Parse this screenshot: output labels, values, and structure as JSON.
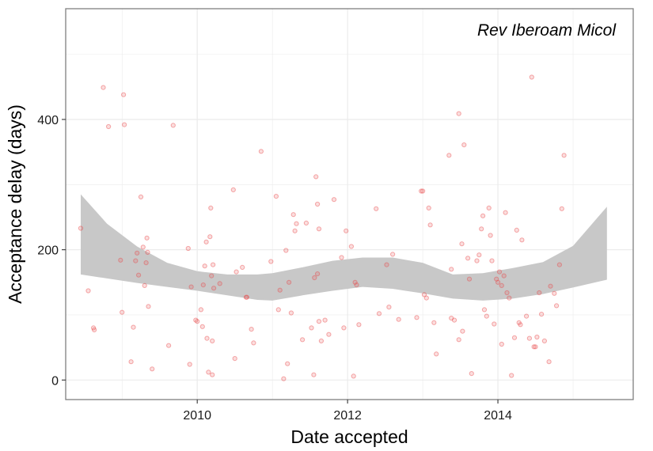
{
  "chart_data": {
    "type": "scatter",
    "annotation": "Rev Iberoam Micol",
    "xlabel": "Date accepted",
    "ylabel": "Acceptance delay (days)",
    "xlim": [
      2008.25,
      2015.8
    ],
    "ylim": [
      -30,
      570
    ],
    "x_ticks": [
      2010,
      2012,
      2014
    ],
    "x_tick_labels": [
      "2010",
      "2012",
      "2014"
    ],
    "y_ticks": [
      0,
      200,
      400
    ],
    "y_tick_labels": [
      "0",
      "200",
      "400"
    ],
    "grid": true,
    "colors": {
      "points": "#e8474a",
      "band": "#c8c8c8",
      "grid": "#ebebeb",
      "border": "#7f7f7f"
    },
    "smooth_band": [
      {
        "x": 2008.45,
        "lo": 162,
        "hi": 285
      },
      {
        "x": 2008.8,
        "lo": 156,
        "hi": 240
      },
      {
        "x": 2009.2,
        "lo": 149,
        "hi": 205
      },
      {
        "x": 2009.6,
        "lo": 143,
        "hi": 180
      },
      {
        "x": 2010.0,
        "lo": 137,
        "hi": 167
      },
      {
        "x": 2010.4,
        "lo": 130,
        "hi": 162
      },
      {
        "x": 2010.8,
        "lo": 123,
        "hi": 162
      },
      {
        "x": 2011.0,
        "lo": 122,
        "hi": 164
      },
      {
        "x": 2011.4,
        "lo": 130,
        "hi": 173
      },
      {
        "x": 2011.8,
        "lo": 137,
        "hi": 183
      },
      {
        "x": 2012.2,
        "lo": 143,
        "hi": 188
      },
      {
        "x": 2012.6,
        "lo": 140,
        "hi": 188
      },
      {
        "x": 2013.0,
        "lo": 133,
        "hi": 180
      },
      {
        "x": 2013.4,
        "lo": 125,
        "hi": 162
      },
      {
        "x": 2013.8,
        "lo": 122,
        "hi": 164
      },
      {
        "x": 2014.2,
        "lo": 125,
        "hi": 172
      },
      {
        "x": 2014.6,
        "lo": 132,
        "hi": 181
      },
      {
        "x": 2015.0,
        "lo": 142,
        "hi": 206
      },
      {
        "x": 2015.45,
        "lo": 154,
        "hi": 266
      }
    ],
    "points": [
      {
        "x": 2008.45,
        "y": 233
      },
      {
        "x": 2008.55,
        "y": 137
      },
      {
        "x": 2008.62,
        "y": 80
      },
      {
        "x": 2008.63,
        "y": 77
      },
      {
        "x": 2008.75,
        "y": 449
      },
      {
        "x": 2008.82,
        "y": 389
      },
      {
        "x": 2008.98,
        "y": 184
      },
      {
        "x": 2009.0,
        "y": 104
      },
      {
        "x": 2009.02,
        "y": 438
      },
      {
        "x": 2009.03,
        "y": 392
      },
      {
        "x": 2009.12,
        "y": 28
      },
      {
        "x": 2009.15,
        "y": 81
      },
      {
        "x": 2009.18,
        "y": 183
      },
      {
        "x": 2009.2,
        "y": 195
      },
      {
        "x": 2009.22,
        "y": 161
      },
      {
        "x": 2009.25,
        "y": 281
      },
      {
        "x": 2009.28,
        "y": 204
      },
      {
        "x": 2009.3,
        "y": 145
      },
      {
        "x": 2009.32,
        "y": 180
      },
      {
        "x": 2009.33,
        "y": 218
      },
      {
        "x": 2009.34,
        "y": 196
      },
      {
        "x": 2009.35,
        "y": 113
      },
      {
        "x": 2009.4,
        "y": 17
      },
      {
        "x": 2009.62,
        "y": 53
      },
      {
        "x": 2009.68,
        "y": 391
      },
      {
        "x": 2009.88,
        "y": 202
      },
      {
        "x": 2009.9,
        "y": 24
      },
      {
        "x": 2009.92,
        "y": 143
      },
      {
        "x": 2009.98,
        "y": 92
      },
      {
        "x": 2010.0,
        "y": 90
      },
      {
        "x": 2010.05,
        "y": 108
      },
      {
        "x": 2010.07,
        "y": 82
      },
      {
        "x": 2010.08,
        "y": 146
      },
      {
        "x": 2010.1,
        "y": 175
      },
      {
        "x": 2010.12,
        "y": 212
      },
      {
        "x": 2010.13,
        "y": 64
      },
      {
        "x": 2010.15,
        "y": 12
      },
      {
        "x": 2010.17,
        "y": 220
      },
      {
        "x": 2010.18,
        "y": 264
      },
      {
        "x": 2010.19,
        "y": 160
      },
      {
        "x": 2010.2,
        "y": 60
      },
      {
        "x": 2010.21,
        "y": 177
      },
      {
        "x": 2010.22,
        "y": 141
      },
      {
        "x": 2010.2,
        "y": 8
      },
      {
        "x": 2010.3,
        "y": 148
      },
      {
        "x": 2010.48,
        "y": 292
      },
      {
        "x": 2010.5,
        "y": 33
      },
      {
        "x": 2010.52,
        "y": 166
      },
      {
        "x": 2010.6,
        "y": 173
      },
      {
        "x": 2010.65,
        "y": 127
      },
      {
        "x": 2010.66,
        "y": 127
      },
      {
        "x": 2010.72,
        "y": 78
      },
      {
        "x": 2010.75,
        "y": 57
      },
      {
        "x": 2010.85,
        "y": 351
      },
      {
        "x": 2010.98,
        "y": 182
      },
      {
        "x": 2011.05,
        "y": 282
      },
      {
        "x": 2011.08,
        "y": 108
      },
      {
        "x": 2011.1,
        "y": 138
      },
      {
        "x": 2011.15,
        "y": 2
      },
      {
        "x": 2011.18,
        "y": 199
      },
      {
        "x": 2011.2,
        "y": 25
      },
      {
        "x": 2011.22,
        "y": 150
      },
      {
        "x": 2011.25,
        "y": 103
      },
      {
        "x": 2011.28,
        "y": 254
      },
      {
        "x": 2011.3,
        "y": 229
      },
      {
        "x": 2011.32,
        "y": 240
      },
      {
        "x": 2011.4,
        "y": 62
      },
      {
        "x": 2011.45,
        "y": 241
      },
      {
        "x": 2011.52,
        "y": 80
      },
      {
        "x": 2011.55,
        "y": 8
      },
      {
        "x": 2011.56,
        "y": 157
      },
      {
        "x": 2011.58,
        "y": 312
      },
      {
        "x": 2011.6,
        "y": 163
      },
      {
        "x": 2011.6,
        "y": 270
      },
      {
        "x": 2011.62,
        "y": 90
      },
      {
        "x": 2011.62,
        "y": 232
      },
      {
        "x": 2011.65,
        "y": 60
      },
      {
        "x": 2011.7,
        "y": 92
      },
      {
        "x": 2011.75,
        "y": 70
      },
      {
        "x": 2011.82,
        "y": 277
      },
      {
        "x": 2011.92,
        "y": 188
      },
      {
        "x": 2011.95,
        "y": 80
      },
      {
        "x": 2011.98,
        "y": 229
      },
      {
        "x": 2012.05,
        "y": 205
      },
      {
        "x": 2012.08,
        "y": 6
      },
      {
        "x": 2012.1,
        "y": 150
      },
      {
        "x": 2012.12,
        "y": 146
      },
      {
        "x": 2012.15,
        "y": 85
      },
      {
        "x": 2012.38,
        "y": 263
      },
      {
        "x": 2012.42,
        "y": 102
      },
      {
        "x": 2012.52,
        "y": 177
      },
      {
        "x": 2012.55,
        "y": 112
      },
      {
        "x": 2012.6,
        "y": 193
      },
      {
        "x": 2012.68,
        "y": 93
      },
      {
        "x": 2012.92,
        "y": 96
      },
      {
        "x": 2012.98,
        "y": 290
      },
      {
        "x": 2013.0,
        "y": 290
      },
      {
        "x": 2013.02,
        "y": 131
      },
      {
        "x": 2013.05,
        "y": 126
      },
      {
        "x": 2013.08,
        "y": 264
      },
      {
        "x": 2013.1,
        "y": 238
      },
      {
        "x": 2013.15,
        "y": 88
      },
      {
        "x": 2013.18,
        "y": 40
      },
      {
        "x": 2013.35,
        "y": 345
      },
      {
        "x": 2013.38,
        "y": 95
      },
      {
        "x": 2013.38,
        "y": 170
      },
      {
        "x": 2013.42,
        "y": 92
      },
      {
        "x": 2013.48,
        "y": 409
      },
      {
        "x": 2013.48,
        "y": 62
      },
      {
        "x": 2013.52,
        "y": 209
      },
      {
        "x": 2013.53,
        "y": 75
      },
      {
        "x": 2013.55,
        "y": 361
      },
      {
        "x": 2013.6,
        "y": 187
      },
      {
        "x": 2013.62,
        "y": 155
      },
      {
        "x": 2013.65,
        "y": 10
      },
      {
        "x": 2013.72,
        "y": 183
      },
      {
        "x": 2013.75,
        "y": 192
      },
      {
        "x": 2013.78,
        "y": 232
      },
      {
        "x": 2013.8,
        "y": 252
      },
      {
        "x": 2013.82,
        "y": 108
      },
      {
        "x": 2013.85,
        "y": 98
      },
      {
        "x": 2013.88,
        "y": 264
      },
      {
        "x": 2013.9,
        "y": 222
      },
      {
        "x": 2013.92,
        "y": 183
      },
      {
        "x": 2013.95,
        "y": 86
      },
      {
        "x": 2013.98,
        "y": 155
      },
      {
        "x": 2014.0,
        "y": 150
      },
      {
        "x": 2014.02,
        "y": 166
      },
      {
        "x": 2014.05,
        "y": 55
      },
      {
        "x": 2014.05,
        "y": 145
      },
      {
        "x": 2014.08,
        "y": 160
      },
      {
        "x": 2014.1,
        "y": 257
      },
      {
        "x": 2014.12,
        "y": 134
      },
      {
        "x": 2014.15,
        "y": 126
      },
      {
        "x": 2014.18,
        "y": 7
      },
      {
        "x": 2014.22,
        "y": 65
      },
      {
        "x": 2014.25,
        "y": 230
      },
      {
        "x": 2014.28,
        "y": 88
      },
      {
        "x": 2014.3,
        "y": 85
      },
      {
        "x": 2014.32,
        "y": 215
      },
      {
        "x": 2014.38,
        "y": 98
      },
      {
        "x": 2014.42,
        "y": 64
      },
      {
        "x": 2014.45,
        "y": 465
      },
      {
        "x": 2014.48,
        "y": 51
      },
      {
        "x": 2014.5,
        "y": 51
      },
      {
        "x": 2014.52,
        "y": 66
      },
      {
        "x": 2014.55,
        "y": 134
      },
      {
        "x": 2014.58,
        "y": 101
      },
      {
        "x": 2014.62,
        "y": 60
      },
      {
        "x": 2014.68,
        "y": 28
      },
      {
        "x": 2014.7,
        "y": 144
      },
      {
        "x": 2014.75,
        "y": 133
      },
      {
        "x": 2014.78,
        "y": 114
      },
      {
        "x": 2014.82,
        "y": 177
      },
      {
        "x": 2014.85,
        "y": 263
      },
      {
        "x": 2014.88,
        "y": 345
      }
    ]
  }
}
